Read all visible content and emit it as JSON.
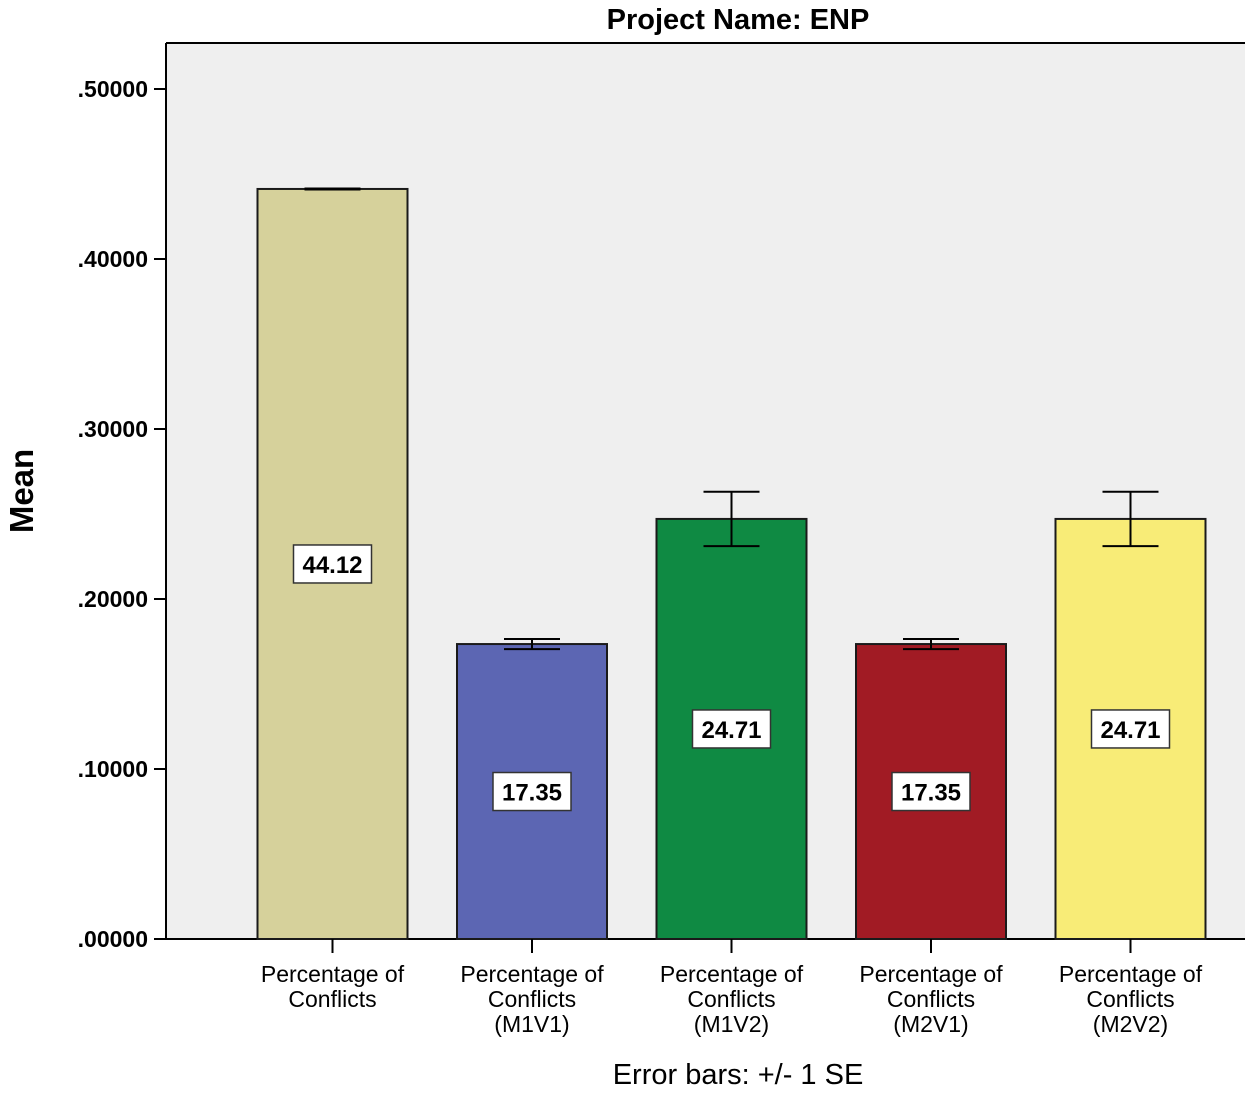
{
  "chart_data": {
    "type": "bar",
    "title": "Project Name: ENP",
    "ylabel": "Mean",
    "xlabel": "",
    "footnote": "Error bars: +/- 1 SE",
    "ylim": [
      0,
      0.55
    ],
    "yticks": [
      {
        "value": 0.0,
        "label": ".00000"
      },
      {
        "value": 0.1,
        "label": ".10000"
      },
      {
        "value": 0.2,
        "label": ".20000"
      },
      {
        "value": 0.3,
        "label": ".30000"
      },
      {
        "value": 0.4,
        "label": ".40000"
      },
      {
        "value": 0.5,
        "label": ".50000"
      }
    ],
    "categories": [
      [
        "Percentage of",
        "Conflicts"
      ],
      [
        "Percentage of",
        "Conflicts",
        "(M1V1)"
      ],
      [
        "Percentage of",
        "Conflicts",
        "(M1V2)"
      ],
      [
        "Percentage of",
        "Conflicts",
        "(M2V1)"
      ],
      [
        "Percentage of",
        "Conflicts",
        "(M2V2)"
      ]
    ],
    "values": [
      0.4412,
      0.1735,
      0.2471,
      0.1735,
      0.2471
    ],
    "data_labels": [
      "44.12",
      "17.35",
      "24.71",
      "17.35",
      "24.71"
    ],
    "errors": [
      0.0003,
      0.003,
      0.016,
      0.003,
      0.016
    ],
    "colors": [
      "#d6d19b",
      "#5c66b3",
      "#0f8a43",
      "#a11b24",
      "#f8ec77"
    ],
    "plot_background": "#efefef",
    "grid": false,
    "legend": "none"
  }
}
